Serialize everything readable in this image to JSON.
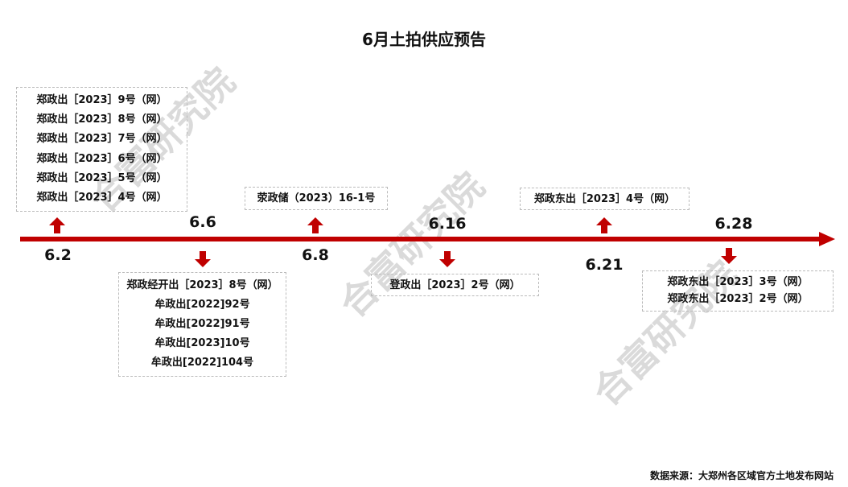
{
  "title": "6月土拍供应预告",
  "watermark": "合富研究院",
  "colors": {
    "axis": "#c00000",
    "arrow": "#c00000",
    "border": "#bbbbbb"
  },
  "events": [
    {
      "date": "6.2",
      "direction": "up",
      "items": [
        "郑政出［2023］9号（网）",
        "郑政出［2023］8号（网）",
        "郑政出［2023］7号（网）",
        "郑政出［2023］6号（网）",
        "郑政出［2023］5号（网）",
        "郑政出［2023］4号（网）"
      ]
    },
    {
      "date": "6.6",
      "direction": "down",
      "items": [
        "郑政经开出［2023］8号（网）",
        "牟政出[2022]92号",
        "牟政出[2022]91号",
        "牟政出[2023]10号",
        "牟政出[2022]104号"
      ]
    },
    {
      "date": "6.8",
      "direction": "up",
      "items": [
        "荥政储（2023）16-1号"
      ]
    },
    {
      "date": "6.16",
      "direction": "down",
      "items": [
        "登政出［2023］2号（网）"
      ]
    },
    {
      "date": "6.21",
      "direction": "up",
      "items": [
        "郑政东出［2023］4号（网）"
      ]
    },
    {
      "date": "6.28",
      "direction": "down",
      "items": [
        "郑政东出［2023］3号（网）",
        "郑政东出［2023］2号（网）"
      ]
    }
  ],
  "source": "数据来源：大郑州各区域官方土地发布网站"
}
